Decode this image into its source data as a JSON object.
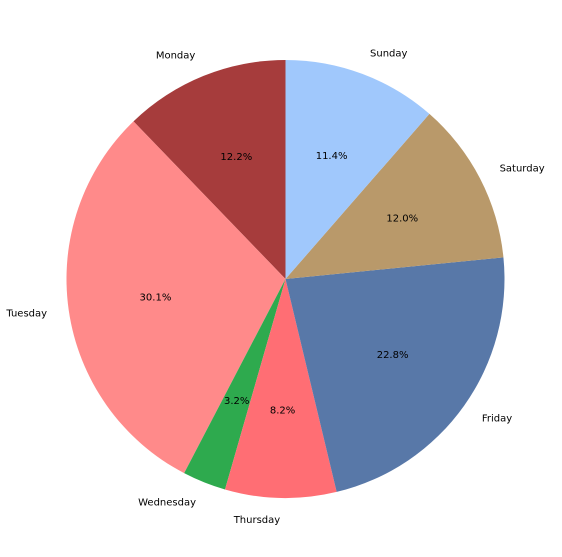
{
  "chart_data": {
    "type": "pie",
    "categories": [
      "Monday",
      "Tuesday",
      "Wednesday",
      "Thursday",
      "Friday",
      "Saturday",
      "Sunday"
    ],
    "values": [
      12.2,
      30.1,
      3.2,
      8.2,
      22.8,
      12.0,
      11.4
    ],
    "value_labels": [
      "12.2%",
      "30.1%",
      "3.2%",
      "8.2%",
      "22.8%",
      "12.0%",
      "11.4%"
    ],
    "colors": [
      "#a63c3c",
      "#ff8a8a",
      "#2eaa4e",
      "#ff6e74",
      "#5878a8",
      "#b9996a",
      "#a0c8fc"
    ],
    "start_angle": 90,
    "counterclockwise": true
  }
}
